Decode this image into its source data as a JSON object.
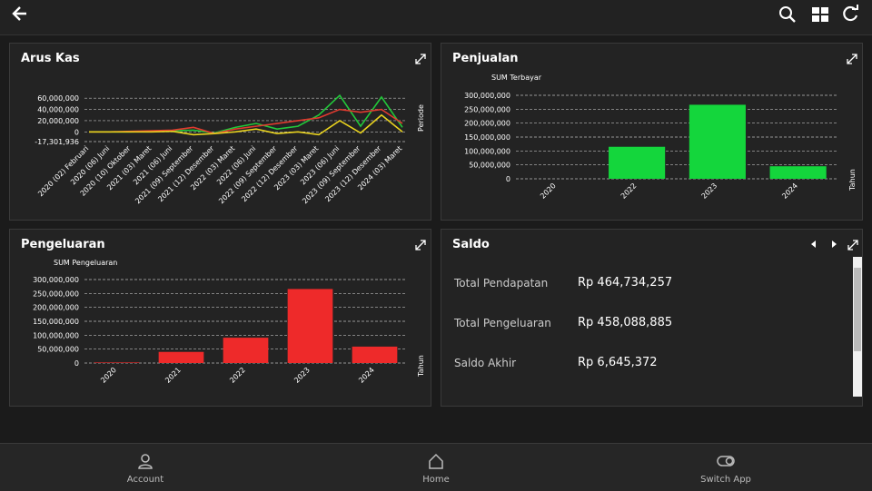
{
  "chart_data": [
    {
      "type": "line",
      "title": "Arus Kas",
      "x_label": "Periode",
      "categories": [
        "2020 (02) Februari",
        "2020 (06) Juni",
        "2020 (10) Oktober",
        "2021 (03) Maret",
        "2021 (06) Juni",
        "2021 (09) September",
        "2021 (12) Desember",
        "2022 (03) Maret",
        "2022 (06) Juni",
        "2022 (09) September",
        "2022 (12) Desember",
        "2023 (03) Maret",
        "2023 (06) Juni",
        "2023 (09) September",
        "2023 (12) Desember",
        "2024 (03) Maret"
      ],
      "series": [
        {
          "color": "#22c93a",
          "values": [
            0,
            0,
            0,
            1000000,
            2000000,
            3000000,
            -2000000,
            8000000,
            15000000,
            5000000,
            10000000,
            30000000,
            65000000,
            10000000,
            62000000,
            8000000
          ]
        },
        {
          "color": "#e03a2f",
          "values": [
            0,
            0,
            1000000,
            2000000,
            3000000,
            8000000,
            -3000000,
            5000000,
            10000000,
            15000000,
            20000000,
            25000000,
            40000000,
            35000000,
            40000000,
            15000000
          ]
        },
        {
          "color": "#e8d21f",
          "values": [
            0,
            0,
            0,
            0,
            1000000,
            -5000000,
            -3000000,
            0,
            5000000,
            -3000000,
            0,
            -5000000,
            20000000,
            -2000000,
            30000000,
            0
          ]
        }
      ],
      "ylim": [
        -17301936,
        70000000
      ],
      "yticks": [
        {
          "value": 60000000,
          "label": "60,000,000"
        },
        {
          "value": 40000000,
          "label": "40,000,000"
        },
        {
          "value": 20000000,
          "label": "20,000,000"
        },
        0,
        {
          "value": -17301936,
          "label": "-17,301,936"
        }
      ],
      "grid": true
    },
    {
      "type": "bar",
      "title": "Penjualan",
      "y_label": "SUM Terbayar",
      "x_label": "Tahun",
      "categories": [
        "2020",
        "2022",
        "2023",
        "2024"
      ],
      "values": [
        0,
        115000000,
        266000000,
        45000000
      ],
      "color": "#14d63c",
      "ylim": [
        0,
        300000000
      ],
      "yticks": [
        0,
        {
          "value": 50000000,
          "label": "50,000,000"
        },
        {
          "value": 100000000,
          "label": "100,000,000"
        },
        {
          "value": 150000000,
          "label": "150,000,000"
        },
        {
          "value": 200000000,
          "label": "200,000,000"
        },
        {
          "value": 250000000,
          "label": "250,000,000"
        },
        {
          "value": 300000000,
          "label": "300,000,000"
        }
      ],
      "grid": true
    },
    {
      "type": "bar",
      "title": "Pengeluaran",
      "y_label": "SUM Pengeluaran",
      "x_label": "Tahun",
      "categories": [
        "2020",
        "2021",
        "2022",
        "2023",
        "2024"
      ],
      "values": [
        2000000,
        40000000,
        91000000,
        266000000,
        59000000
      ],
      "color": "#ee2a2a",
      "ylim": [
        0,
        300000000
      ],
      "yticks": [
        0,
        {
          "value": 50000000,
          "label": "50,000,000"
        },
        {
          "value": 100000000,
          "label": "100,000,000"
        },
        {
          "value": 150000000,
          "label": "150,000,000"
        },
        {
          "value": 200000000,
          "label": "200,000,000"
        },
        {
          "value": 250000000,
          "label": "250,000,000"
        },
        {
          "value": 300000000,
          "label": "300,000,000"
        }
      ],
      "grid": true
    }
  ],
  "saldo": {
    "title": "Saldo",
    "rows": [
      {
        "label": "Total Pendapatan",
        "value": "Rp 464,734,257"
      },
      {
        "label": "Total Pengeluaran",
        "value": "Rp 458,088,885"
      },
      {
        "label": "Saldo Akhir",
        "value": "Rp 6,645,372"
      }
    ]
  },
  "nav": [
    "Account",
    "Home",
    "Switch App"
  ]
}
